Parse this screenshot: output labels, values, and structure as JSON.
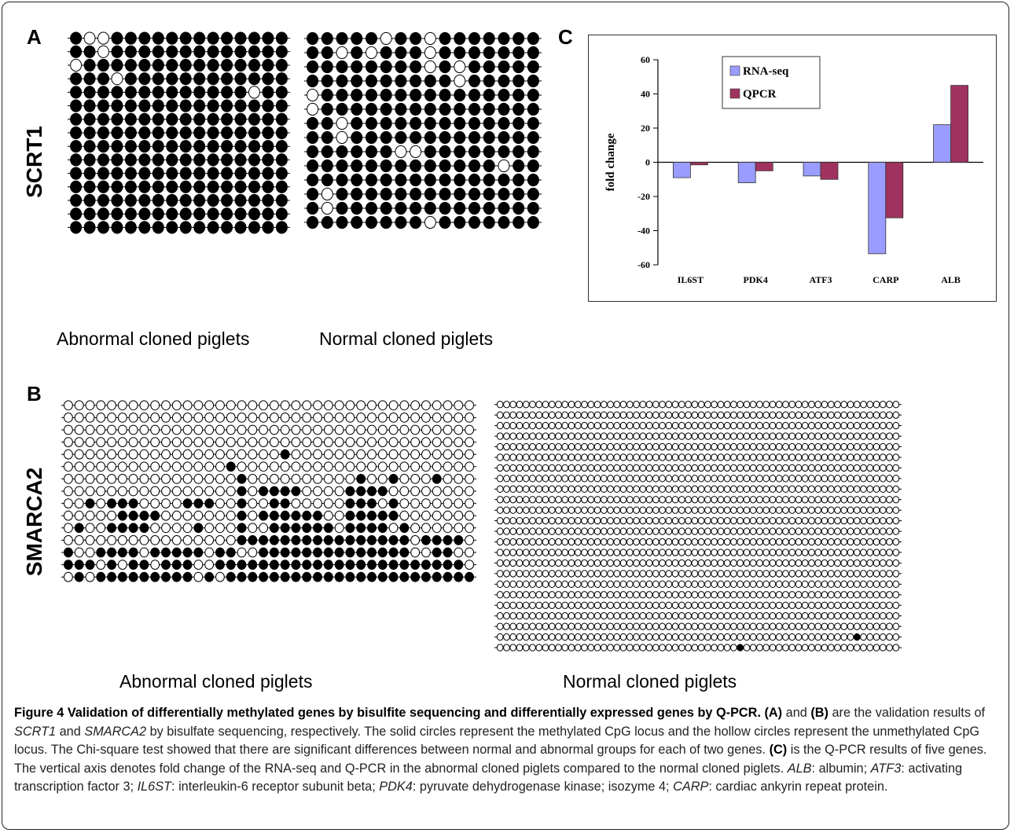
{
  "panels": {
    "A": {
      "letter": "A",
      "gene": "SCRT1",
      "groups": [
        {
          "label": "Abnormal cloned piglets",
          "rows": [
            "1001111111111111",
            "1101111111111111",
            "0111111111111111",
            "1110111111111111",
            "1111111111111011",
            "1111111111111111",
            "1111111111111111",
            "1111111111111111",
            "1111111111111111",
            "1111111111111111",
            "1111111111111111",
            "1111111111111111",
            "1111111111111111",
            "1111111111111111",
            "1111111111111111"
          ]
        },
        {
          "label": "Normal cloned piglets",
          "rows": [
            "1111101101111111",
            "1101011101111111",
            "1111111101011111",
            "1111111111011111",
            "0111111111111111",
            "0111111111111111",
            "1101111111111111",
            "1101111111111111",
            "1111110011111111",
            "1111111111111011",
            "1111111111111111",
            "1011111111111111",
            "1011111111111111",
            "1111111101111111"
          ]
        }
      ]
    },
    "B": {
      "letter": "B",
      "gene": "SMARCA2",
      "groups": [
        {
          "label": "Abnormal cloned piglets",
          "rows": [
            "00000000000000000000000000000000000000",
            "00000000000000000000000000000000000000",
            "00000000000000000000000000000000000000",
            "00000000000000000000000000000000000000",
            "00000000000000000000100000000000000000",
            "00000000000000010000000000000000000000",
            "00000000000000001000000000010010001000",
            "00000000000000001011110000111100000000",
            "00101110000111001001100000111010000000",
            "00000111100000001011111100111110000000",
            "01001111000010001001111110111101000000",
            "00000000000000001111111111111111011110",
            "10011110111110110011111111111111001100",
            "11101011011100111111111111111111111110",
            "01011111111101011111111111111111111111"
          ]
        },
        {
          "label": "Normal cloned piglets",
          "rows": [
            "00000000000000000000000000000000000000000000000000000000000000",
            "00000000000000000000000000000000000000000000000000000000000000",
            "00000000000000000000000000000000000000000000000000000000000000",
            "00000000000000000000000000000000000000000000000000000000000000",
            "00000000000000000000000000000000000000000000000000000000000000",
            "00000000000000000000000000000000000000000000000000000000000000",
            "00000000000000000000000000000000000000000000000000000000000000",
            "00000000000000000000000000000000000000000000000000000000000000",
            "00000000000000000000000000000000000000000000000000000000000000",
            "00000000000000000000000000000000000000000000000000000000000000",
            "00000000000000000000000000000000000000000000000000000000000000",
            "00000000000000000000000000000000000000000000000000000000000000",
            "00000000000000000000000000000000000000000000000000000000000000",
            "00000000000000000000000000000000000000000000000000000000000000",
            "00000000000000000000000000000000000000000000000000000000000000",
            "00000000000000000000000000000000000000000000000000000000000000",
            "00000000000000000000000000000000000000000000000000000000000000",
            "00000000000000000000000000000000000000000000000000000000000000",
            "00000000000000000000000000000000000000000000000000000000000000",
            "00000000000000000000000000000000000000000000000000000000000000",
            "00000000000000000000000000000000000000000000000000000000000000",
            "00000000000000000000000000000000000000000000000000000000000000",
            "00000000000000000000000000000000000000000000000000000001000000",
            "00000000000000000000000000000000000001000000000000000000000000"
          ]
        }
      ]
    },
    "C": {
      "letter": "C"
    }
  },
  "chart_data": {
    "type": "bar",
    "categories": [
      "IL6ST",
      "PDK4",
      "ATF3",
      "CARP",
      "ALB"
    ],
    "series": [
      {
        "name": "RNA-seq",
        "values": [
          -9,
          -12,
          -8,
          -53.5,
          22
        ],
        "color": "#9a9cff"
      },
      {
        "name": "QPCR",
        "values": [
          -1.5,
          -5,
          -10,
          -32.5,
          45
        ],
        "color": "#a0325f"
      }
    ],
    "ylabel": "fold change",
    "ylim": [
      -60,
      60
    ],
    "yticks": [
      -60,
      -40,
      -20,
      0,
      20,
      40,
      60
    ],
    "legend_position": "top-center"
  },
  "caption": {
    "title": "Figure 4 Validation of differentially methylated genes by bisulfite sequencing and differentially expressed genes by Q-PCR.",
    "ref_a": "(A)",
    "and_1": "and",
    "ref_b": "(B)",
    "text_1": "are the validation results of",
    "gene_scrt1": "SCRT1",
    "and_2": "and",
    "gene_smarca2": "SMARCA2",
    "text_2": "by bisulfate sequencing, respectively. The solid circles represent the methylated CpG locus and the hollow circles represent the unmethylated CpG locus. The Chi-square test showed that there are significant differences between normal and abnormal groups for each of two genes.",
    "ref_c": "(C)",
    "text_3": "is the Q-PCR results of five genes. The vertical axis denotes fold change of the RNA-seq and Q-PCR in the abnormal cloned piglets compared to the normal cloned piglets.",
    "abbr_alb": "ALB",
    "def_alb": ": albumin;",
    "abbr_atf3": "ATF3",
    "def_atf3": ": activating transcription factor 3;",
    "abbr_il6st": "IL6ST",
    "def_il6st": ": interleukin-6 receptor subunit beta;",
    "abbr_pdk4": "PDK4",
    "def_pdk4": ": pyruvate dehydrogenase kinase; isozyme 4;",
    "abbr_carp": "CARP",
    "def_carp": ": cardiac ankyrin repeat protein."
  }
}
